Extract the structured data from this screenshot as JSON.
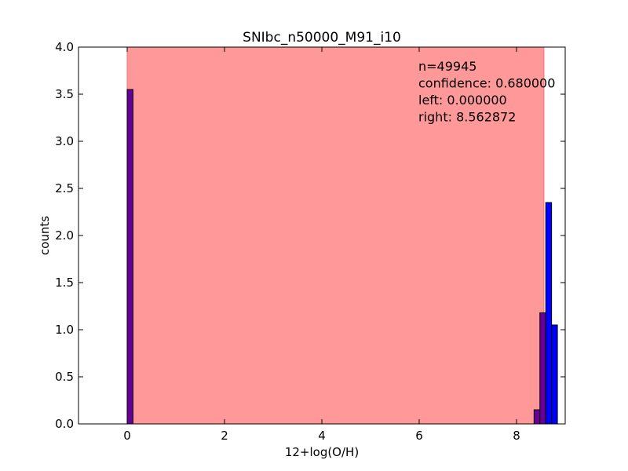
{
  "chart_data": {
    "type": "bar",
    "title": "SNIbc_n50000_M91_i10",
    "xlabel": "12+log(O/H)",
    "ylabel": "counts",
    "xlim": [
      -1,
      9
    ],
    "ylim": [
      0,
      4
    ],
    "xticks": [
      "0",
      "2",
      "4",
      "6",
      "8"
    ],
    "yticks": [
      "0.0",
      "0.5",
      "1.0",
      "1.5",
      "2.0",
      "2.5",
      "3.0",
      "3.5",
      "4.0"
    ],
    "bin_width": 0.12,
    "bars": [
      {
        "x": 0.0,
        "value": 3.55
      },
      {
        "x": 8.36,
        "value": 0.15
      },
      {
        "x": 8.48,
        "value": 1.18
      },
      {
        "x": 8.6,
        "value": 2.35
      },
      {
        "x": 8.72,
        "value": 1.05
      }
    ],
    "confidence_region": {
      "left": 0.0,
      "right": 8.562872,
      "color": "#ff9999"
    },
    "bar_color": "#0000ff",
    "bar_color_in_region": "#660099",
    "annotations": [
      "n=49945",
      "confidence: 0.680000",
      "left: 0.000000",
      "right: 8.562872"
    ]
  }
}
